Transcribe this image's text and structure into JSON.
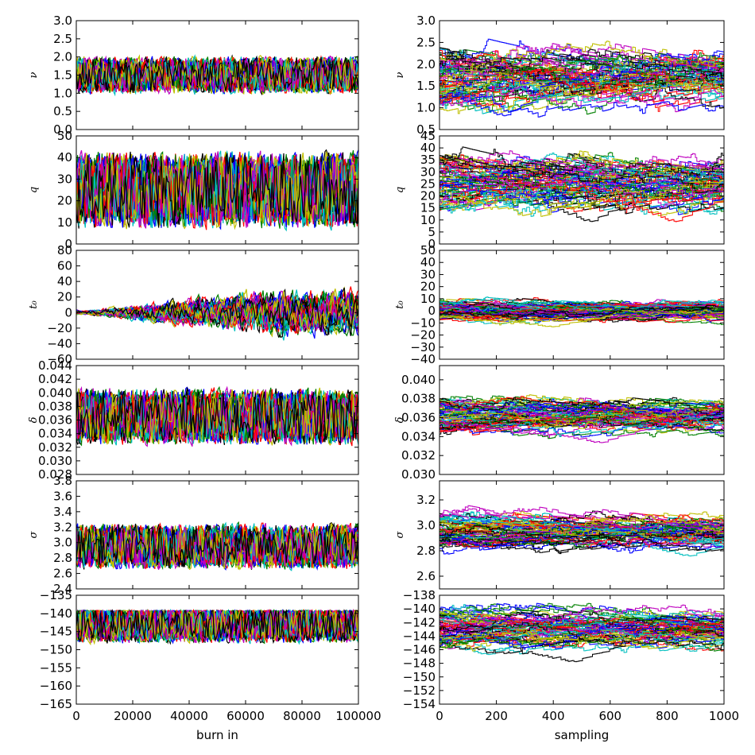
{
  "chart_data": [
    {
      "type": "line",
      "row": 0,
      "col": 0,
      "ylabel": "ν",
      "xlabel": "",
      "xlim": [
        0,
        100000
      ],
      "ylim": [
        0.0,
        3.0
      ],
      "yticks": [
        "0.0",
        "0.5",
        "1.0",
        "1.5",
        "2.0",
        "2.5",
        "3.0"
      ],
      "yticks_num": [
        0,
        0.5,
        1,
        1.5,
        2,
        2.5,
        3
      ],
      "xticks": [],
      "xticks_num": [],
      "trace": "burnin",
      "range": [
        0.5,
        3.0
      ],
      "start": 1.5,
      "spread": 0.35,
      "trend": 0.55
    },
    {
      "type": "line",
      "row": 0,
      "col": 1,
      "ylabel": "ν",
      "xlabel": "",
      "xlim": [
        0,
        1000
      ],
      "ylim": [
        0.5,
        3.0
      ],
      "yticks": [
        "0.5",
        "1.0",
        "1.5",
        "2.0",
        "2.5",
        "3.0"
      ],
      "yticks_num": [
        0.5,
        1,
        1.5,
        2,
        2.5,
        3
      ],
      "xticks": [],
      "xticks_num": [],
      "trace": "sampling",
      "range": [
        0.55,
        2.95
      ],
      "center": 1.75,
      "spread": 0.7
    },
    {
      "type": "line",
      "row": 1,
      "col": 0,
      "ylabel": "q",
      "xlabel": "",
      "xlim": [
        0,
        100000
      ],
      "ylim": [
        0,
        50
      ],
      "yticks": [
        "0",
        "10",
        "20",
        "30",
        "40",
        "50"
      ],
      "yticks_num": [
        0,
        10,
        20,
        30,
        40,
        50
      ],
      "xticks": [],
      "xticks_num": [],
      "trace": "burnin",
      "range": [
        1,
        45
      ],
      "start": 25,
      "spread": 12,
      "trend": 0
    },
    {
      "type": "line",
      "row": 1,
      "col": 1,
      "ylabel": "q",
      "xlabel": "",
      "xlim": [
        0,
        1000
      ],
      "ylim": [
        0,
        45
      ],
      "yticks": [
        "0",
        "5",
        "10",
        "15",
        "20",
        "25",
        "30",
        "35",
        "40",
        "45"
      ],
      "yticks_num": [
        0,
        5,
        10,
        15,
        20,
        25,
        30,
        35,
        40,
        45
      ],
      "xticks": [],
      "xticks_num": [],
      "trace": "sampling",
      "range": [
        1,
        44
      ],
      "center": 25,
      "spread": 12
    },
    {
      "type": "line",
      "row": 2,
      "col": 0,
      "ylabel": "t₀",
      "xlabel": "",
      "xlim": [
        0,
        100000
      ],
      "ylim": [
        -60,
        80
      ],
      "yticks": [
        "−60",
        "−40",
        "−20",
        "0",
        "20",
        "40",
        "60",
        "80"
      ],
      "yticks_num": [
        -60,
        -40,
        -20,
        0,
        20,
        40,
        60,
        80
      ],
      "xticks": [],
      "xticks_num": [],
      "trace": "burnin_grow",
      "range": [
        -55,
        60
      ],
      "start": 0,
      "spread": 30,
      "trend": 0
    },
    {
      "type": "line",
      "row": 2,
      "col": 1,
      "ylabel": "t₀",
      "xlabel": "",
      "xlim": [
        0,
        1000
      ],
      "ylim": [
        -40,
        50
      ],
      "yticks": [
        "−40",
        "−30",
        "−20",
        "−10",
        "0",
        "10",
        "20",
        "30",
        "40",
        "50"
      ],
      "yticks_num": [
        -40,
        -30,
        -20,
        -10,
        0,
        10,
        20,
        30,
        40,
        50
      ],
      "xticks": [],
      "xticks_num": [],
      "trace": "sampling",
      "range": [
        -32,
        42
      ],
      "center": 0,
      "spread": 9
    },
    {
      "type": "line",
      "row": 3,
      "col": 0,
      "ylabel": "δ",
      "xlabel": "",
      "xlim": [
        0,
        100000
      ],
      "ylim": [
        0.028,
        0.044
      ],
      "yticks": [
        "0.028",
        "0.030",
        "0.032",
        "0.034",
        "0.036",
        "0.038",
        "0.040",
        "0.042",
        "0.044"
      ],
      "yticks_num": [
        0.028,
        0.03,
        0.032,
        0.034,
        0.036,
        0.038,
        0.04,
        0.042,
        0.044
      ],
      "xticks": [],
      "xticks_num": [],
      "trace": "burnin",
      "range": [
        0.03,
        0.0415
      ],
      "start": 0.0365,
      "spread": 0.0028,
      "trend": 0
    },
    {
      "type": "line",
      "row": 3,
      "col": 1,
      "ylabel": "δ",
      "xlabel": "",
      "xlim": [
        0,
        1000
      ],
      "ylim": [
        0.03,
        0.0415
      ],
      "yticks": [
        "0.030",
        "0.032",
        "0.034",
        "0.036",
        "0.038",
        "0.040"
      ],
      "yticks_num": [
        0.03,
        0.032,
        0.034,
        0.036,
        0.038,
        0.04
      ],
      "xticks": [],
      "xticks_num": [],
      "trace": "sampling",
      "range": [
        0.0318,
        0.0408
      ],
      "center": 0.0362,
      "spread": 0.0018
    },
    {
      "type": "line",
      "row": 4,
      "col": 0,
      "ylabel": "σ",
      "xlabel": "",
      "xlim": [
        0,
        100000
      ],
      "ylim": [
        2.4,
        3.8
      ],
      "yticks": [
        "2.4",
        "2.6",
        "2.8",
        "3.0",
        "3.2",
        "3.4",
        "3.6",
        "3.8"
      ],
      "yticks_num": [
        2.4,
        2.6,
        2.8,
        3,
        3.2,
        3.4,
        3.6,
        3.8
      ],
      "xticks": [],
      "xticks_num": [],
      "trace": "burnin",
      "range": [
        2.5,
        3.45
      ],
      "start": 2.95,
      "spread": 0.2,
      "trend": 0
    },
    {
      "type": "line",
      "row": 4,
      "col": 1,
      "ylabel": "σ",
      "xlabel": "",
      "xlim": [
        0,
        1000
      ],
      "ylim": [
        2.5,
        3.35
      ],
      "yticks": [
        "2.6",
        "2.8",
        "3.0",
        "3.2"
      ],
      "yticks_num": [
        2.6,
        2.8,
        3.0,
        3.2
      ],
      "xticks": [],
      "xticks_num": [],
      "trace": "sampling",
      "range": [
        2.55,
        3.33
      ],
      "center": 2.95,
      "spread": 0.14
    },
    {
      "type": "line",
      "row": 5,
      "col": 0,
      "ylabel": "",
      "xlabel": "burn in",
      "xlim": [
        0,
        100000
      ],
      "ylim": [
        -165,
        -135
      ],
      "yticks": [
        "−165",
        "−160",
        "−155",
        "−150",
        "−145",
        "−140",
        "−135"
      ],
      "yticks_num": [
        -165,
        -160,
        -155,
        -150,
        -145,
        -140,
        -135
      ],
      "xticks": [
        "0",
        "20000",
        "40000",
        "60000",
        "80000",
        "100000"
      ],
      "xticks_num": [
        0,
        20000,
        40000,
        60000,
        80000,
        100000
      ],
      "trace": "burnin",
      "range": [
        -160,
        -139.2
      ],
      "start": -143,
      "spread": 3.5,
      "trend": 0
    },
    {
      "type": "line",
      "row": 5,
      "col": 1,
      "ylabel": "",
      "xlabel": "sampling",
      "xlim": [
        0,
        1000
      ],
      "ylim": [
        -154,
        -138
      ],
      "yticks": [
        "−154",
        "−152",
        "−150",
        "−148",
        "−146",
        "−144",
        "−142",
        "−140",
        "−138"
      ],
      "yticks_num": [
        -154,
        -152,
        -150,
        -148,
        -146,
        -144,
        -142,
        -140,
        -138
      ],
      "xticks": [
        "0",
        "200",
        "400",
        "600",
        "800",
        "1000"
      ],
      "xticks_num": [
        0,
        200,
        400,
        600,
        800,
        1000
      ],
      "trace": "sampling",
      "range": [
        -153,
        -139.2
      ],
      "center": -143,
      "spread": 2.8
    }
  ],
  "colors": [
    "#0000ff",
    "#008000",
    "#ff0000",
    "#00bfbf",
    "#bf00bf",
    "#bfbf00",
    "#000000"
  ]
}
